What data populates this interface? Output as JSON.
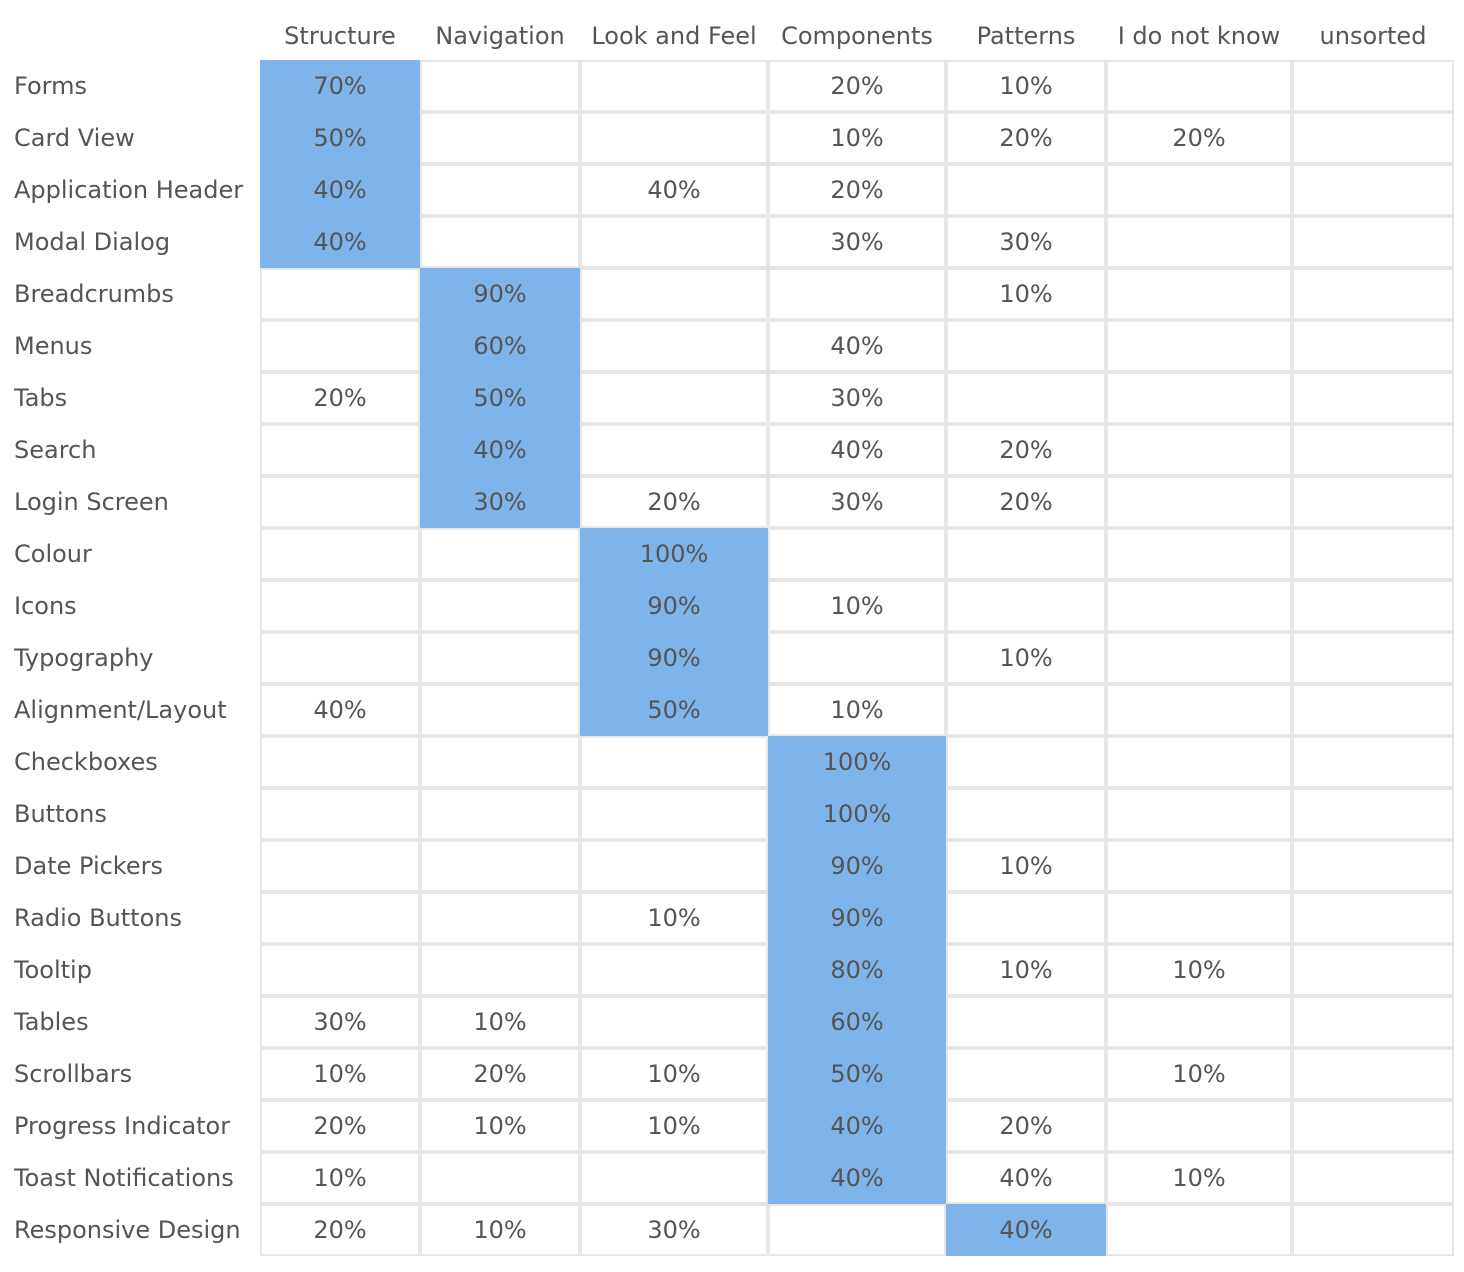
{
  "chart_data": {
    "type": "table",
    "highlight_color": "#7fb4ea",
    "grid_color": "#e6e6e6",
    "text_color": "#555555",
    "columns": [
      "Structure",
      "Navigation",
      "Look and Feel",
      "Components",
      "Patterns",
      "I do not know",
      "unsorted"
    ],
    "rows": [
      {
        "label": "Forms",
        "values": [
          "70%",
          "",
          "",
          "20%",
          "10%",
          "",
          ""
        ],
        "highlight": 0
      },
      {
        "label": "Card View",
        "values": [
          "50%",
          "",
          "",
          "10%",
          "20%",
          "20%",
          ""
        ],
        "highlight": 0
      },
      {
        "label": "Application Header",
        "values": [
          "40%",
          "",
          "40%",
          "20%",
          "",
          "",
          ""
        ],
        "highlight": 0
      },
      {
        "label": "Modal Dialog",
        "values": [
          "40%",
          "",
          "",
          "30%",
          "30%",
          "",
          ""
        ],
        "highlight": 0
      },
      {
        "label": "Breadcrumbs",
        "values": [
          "",
          "90%",
          "",
          "",
          "10%",
          "",
          ""
        ],
        "highlight": 1
      },
      {
        "label": "Menus",
        "values": [
          "",
          "60%",
          "",
          "40%",
          "",
          "",
          ""
        ],
        "highlight": 1
      },
      {
        "label": "Tabs",
        "values": [
          "20%",
          "50%",
          "",
          "30%",
          "",
          "",
          ""
        ],
        "highlight": 1
      },
      {
        "label": "Search",
        "values": [
          "",
          "40%",
          "",
          "40%",
          "20%",
          "",
          ""
        ],
        "highlight": 1
      },
      {
        "label": "Login Screen",
        "values": [
          "",
          "30%",
          "20%",
          "30%",
          "20%",
          "",
          ""
        ],
        "highlight": 1
      },
      {
        "label": "Colour",
        "values": [
          "",
          "",
          "100%",
          "",
          "",
          "",
          ""
        ],
        "highlight": 2
      },
      {
        "label": "Icons",
        "values": [
          "",
          "",
          "90%",
          "10%",
          "",
          "",
          ""
        ],
        "highlight": 2
      },
      {
        "label": "Typography",
        "values": [
          "",
          "",
          "90%",
          "",
          "10%",
          "",
          ""
        ],
        "highlight": 2
      },
      {
        "label": "Alignment/Layout",
        "values": [
          "40%",
          "",
          "50%",
          "10%",
          "",
          "",
          ""
        ],
        "highlight": 2
      },
      {
        "label": "Checkboxes",
        "values": [
          "",
          "",
          "",
          "100%",
          "",
          "",
          ""
        ],
        "highlight": 3
      },
      {
        "label": "Buttons",
        "values": [
          "",
          "",
          "",
          "100%",
          "",
          "",
          ""
        ],
        "highlight": 3
      },
      {
        "label": "Date Pickers",
        "values": [
          "",
          "",
          "",
          "90%",
          "10%",
          "",
          ""
        ],
        "highlight": 3
      },
      {
        "label": "Radio Buttons",
        "values": [
          "",
          "",
          "10%",
          "90%",
          "",
          "",
          ""
        ],
        "highlight": 3
      },
      {
        "label": "Tooltip",
        "values": [
          "",
          "",
          "",
          "80%",
          "10%",
          "10%",
          ""
        ],
        "highlight": 3
      },
      {
        "label": "Tables",
        "values": [
          "30%",
          "10%",
          "",
          "60%",
          "",
          "",
          ""
        ],
        "highlight": 3
      },
      {
        "label": "Scrollbars",
        "values": [
          "10%",
          "20%",
          "10%",
          "50%",
          "",
          "10%",
          ""
        ],
        "highlight": 3
      },
      {
        "label": "Progress Indicator",
        "values": [
          "20%",
          "10%",
          "10%",
          "40%",
          "20%",
          "",
          ""
        ],
        "highlight": 3
      },
      {
        "label": "Toast Notifications",
        "values": [
          "10%",
          "",
          "",
          "40%",
          "40%",
          "10%",
          ""
        ],
        "highlight": 3
      },
      {
        "label": "Responsive Design",
        "values": [
          "20%",
          "10%",
          "30%",
          "",
          "40%",
          "",
          ""
        ],
        "highlight": 4
      }
    ]
  }
}
